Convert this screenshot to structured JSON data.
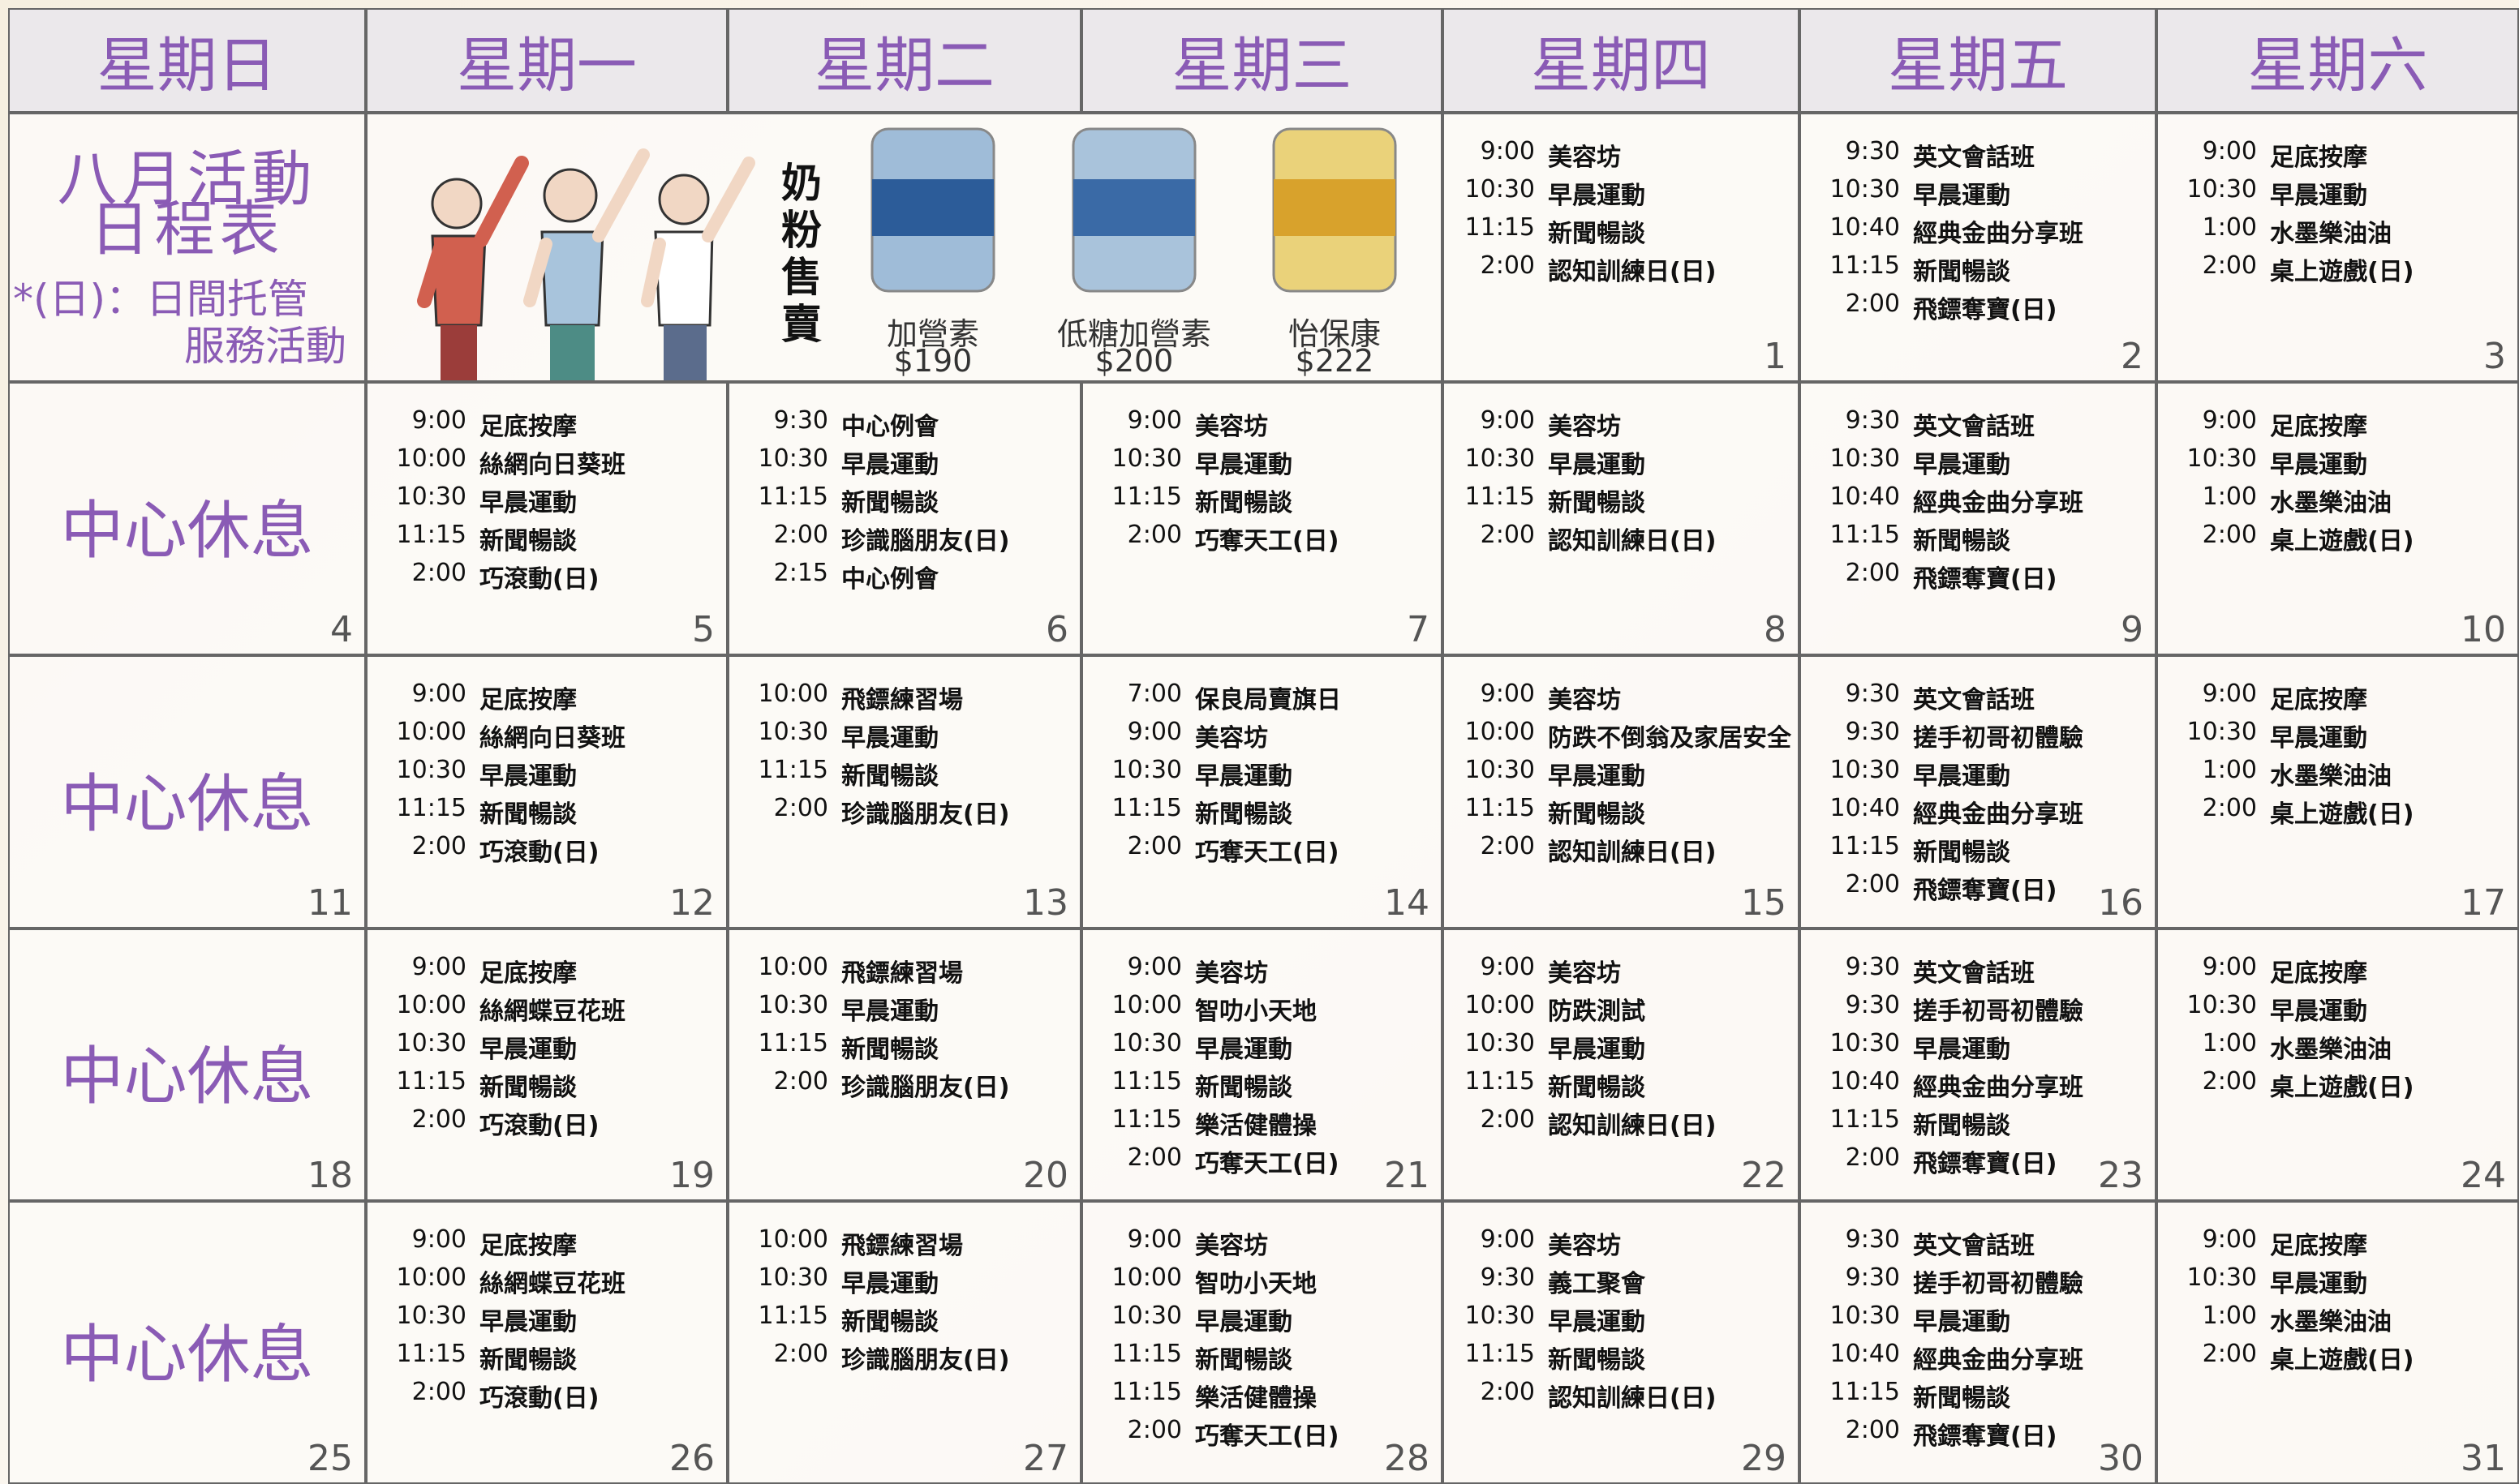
{
  "weekdays": [
    "星期日",
    "星期一",
    "星期二",
    "星期三",
    "星期四",
    "星期五",
    "星期六"
  ],
  "title": {
    "heading": [
      "八月活動",
      "日程表"
    ],
    "note": [
      "*(日)：日間托管",
      "服務活動"
    ]
  },
  "promo": {
    "label": "奶粉售賣",
    "products": [
      {
        "name": "加營素",
        "price": "$190"
      },
      {
        "name": "低糖加營素",
        "price": "$200"
      },
      {
        "name": "怡保康",
        "price": "$222"
      }
    ]
  },
  "weeks": [
    {
      "cells": [
        {
          "day": 1,
          "events": [
            {
              "time": "9:00",
              "activity": "美容坊"
            },
            {
              "time": "10:30",
              "activity": "早晨運動"
            },
            {
              "time": "11:15",
              "activity": "新聞暢談"
            },
            {
              "time": "2:00",
              "activity": "認知訓練日(日)"
            }
          ]
        },
        {
          "day": 2,
          "events": [
            {
              "time": "9:30",
              "activity": "英文會話班"
            },
            {
              "time": "10:30",
              "activity": "早晨運動"
            },
            {
              "time": "10:40",
              "activity": "經典金曲分享班"
            },
            {
              "time": "11:15",
              "activity": "新聞暢談"
            },
            {
              "time": "2:00",
              "activity": "飛鏢奪寶(日)"
            }
          ]
        },
        {
          "day": 3,
          "events": [
            {
              "time": "9:00",
              "activity": "足底按摩"
            },
            {
              "time": "10:30",
              "activity": "早晨運動"
            },
            {
              "time": "1:00",
              "activity": "水墨樂油油"
            },
            {
              "time": "2:00",
              "activity": "桌上遊戲(日)"
            }
          ]
        }
      ]
    },
    {
      "cells": [
        {
          "day": 4,
          "note": "中心休息"
        },
        {
          "day": 5,
          "events": [
            {
              "time": "9:00",
              "activity": "足底按摩"
            },
            {
              "time": "10:00",
              "activity": "絲網向日葵班"
            },
            {
              "time": "10:30",
              "activity": "早晨運動"
            },
            {
              "time": "11:15",
              "activity": "新聞暢談"
            },
            {
              "time": "2:00",
              "activity": "巧滾動(日)"
            }
          ]
        },
        {
          "day": 6,
          "events": [
            {
              "time": "9:30",
              "activity": "中心例會"
            },
            {
              "time": "10:30",
              "activity": "早晨運動"
            },
            {
              "time": "11:15",
              "activity": "新聞暢談"
            },
            {
              "time": "2:00",
              "activity": "珍識腦朋友(日)"
            },
            {
              "time": "2:15",
              "activity": "中心例會"
            }
          ]
        },
        {
          "day": 7,
          "events": [
            {
              "time": "9:00",
              "activity": "美容坊"
            },
            {
              "time": "10:30",
              "activity": "早晨運動"
            },
            {
              "time": "11:15",
              "activity": "新聞暢談"
            },
            {
              "time": "2:00",
              "activity": "巧奪天工(日)"
            }
          ]
        },
        {
          "day": 8,
          "events": [
            {
              "time": "9:00",
              "activity": "美容坊"
            },
            {
              "time": "10:30",
              "activity": "早晨運動"
            },
            {
              "time": "11:15",
              "activity": "新聞暢談"
            },
            {
              "time": "2:00",
              "activity": "認知訓練日(日)"
            }
          ]
        },
        {
          "day": 9,
          "events": [
            {
              "time": "9:30",
              "activity": "英文會話班"
            },
            {
              "time": "10:30",
              "activity": "早晨運動"
            },
            {
              "time": "10:40",
              "activity": "經典金曲分享班"
            },
            {
              "time": "11:15",
              "activity": "新聞暢談"
            },
            {
              "time": "2:00",
              "activity": "飛鏢奪寶(日)"
            }
          ]
        },
        {
          "day": 10,
          "events": [
            {
              "time": "9:00",
              "activity": "足底按摩"
            },
            {
              "time": "10:30",
              "activity": "早晨運動"
            },
            {
              "time": "1:00",
              "activity": "水墨樂油油"
            },
            {
              "time": "2:00",
              "activity": "桌上遊戲(日)"
            }
          ]
        }
      ]
    },
    {
      "cells": [
        {
          "day": 11,
          "note": "中心休息"
        },
        {
          "day": 12,
          "events": [
            {
              "time": "9:00",
              "activity": "足底按摩"
            },
            {
              "time": "10:00",
              "activity": "絲網向日葵班"
            },
            {
              "time": "10:30",
              "activity": "早晨運動"
            },
            {
              "time": "11:15",
              "activity": "新聞暢談"
            },
            {
              "time": "2:00",
              "activity": "巧滾動(日)"
            }
          ]
        },
        {
          "day": 13,
          "events": [
            {
              "time": "10:00",
              "activity": "飛鏢練習場"
            },
            {
              "time": "10:30",
              "activity": "早晨運動"
            },
            {
              "time": "11:15",
              "activity": "新聞暢談"
            },
            {
              "time": "2:00",
              "activity": "珍識腦朋友(日)"
            }
          ]
        },
        {
          "day": 14,
          "events": [
            {
              "time": "7:00",
              "activity": "保良局賣旗日"
            },
            {
              "time": "9:00",
              "activity": "美容坊"
            },
            {
              "time": "10:30",
              "activity": "早晨運動"
            },
            {
              "time": "11:15",
              "activity": "新聞暢談"
            },
            {
              "time": "2:00",
              "activity": "巧奪天工(日)"
            }
          ]
        },
        {
          "day": 15,
          "events": [
            {
              "time": "9:00",
              "activity": "美容坊"
            },
            {
              "time": "10:00",
              "activity": "防跌不倒翁及家居安全"
            },
            {
              "time": "10:30",
              "activity": "早晨運動"
            },
            {
              "time": "11:15",
              "activity": "新聞暢談"
            },
            {
              "time": "2:00",
              "activity": "認知訓練日(日)"
            }
          ]
        },
        {
          "day": 16,
          "events": [
            {
              "time": "9:30",
              "activity": "英文會話班"
            },
            {
              "time": "9:30",
              "activity": "搓手初哥初體驗"
            },
            {
              "time": "10:30",
              "activity": "早晨運動"
            },
            {
              "time": "10:40",
              "activity": "經典金曲分享班"
            },
            {
              "time": "11:15",
              "activity": "新聞暢談"
            },
            {
              "time": "2:00",
              "activity": "飛鏢奪寶(日)"
            }
          ]
        },
        {
          "day": 17,
          "events": [
            {
              "time": "9:00",
              "activity": "足底按摩"
            },
            {
              "time": "10:30",
              "activity": "早晨運動"
            },
            {
              "time": "1:00",
              "activity": "水墨樂油油"
            },
            {
              "time": "2:00",
              "activity": "桌上遊戲(日)"
            }
          ]
        }
      ]
    },
    {
      "cells": [
        {
          "day": 18,
          "note": "中心休息"
        },
        {
          "day": 19,
          "events": [
            {
              "time": "9:00",
              "activity": "足底按摩"
            },
            {
              "time": "10:00",
              "activity": "絲網蝶豆花班"
            },
            {
              "time": "10:30",
              "activity": "早晨運動"
            },
            {
              "time": "11:15",
              "activity": "新聞暢談"
            },
            {
              "time": "2:00",
              "activity": "巧滾動(日)"
            }
          ]
        },
        {
          "day": 20,
          "events": [
            {
              "time": "10:00",
              "activity": "飛鏢練習場"
            },
            {
              "time": "10:30",
              "activity": "早晨運動"
            },
            {
              "time": "11:15",
              "activity": "新聞暢談"
            },
            {
              "time": "2:00",
              "activity": "珍識腦朋友(日)"
            }
          ]
        },
        {
          "day": 21,
          "events": [
            {
              "time": "9:00",
              "activity": "美容坊"
            },
            {
              "time": "10:00",
              "activity": "智叻小天地"
            },
            {
              "time": "10:30",
              "activity": "早晨運動"
            },
            {
              "time": "11:15",
              "activity": "新聞暢談"
            },
            {
              "time": "11:15",
              "activity": "樂活健體操"
            },
            {
              "time": "2:00",
              "activity": "巧奪天工(日)"
            }
          ]
        },
        {
          "day": 22,
          "events": [
            {
              "time": "9:00",
              "activity": "美容坊"
            },
            {
              "time": "10:00",
              "activity": "防跌測試"
            },
            {
              "time": "10:30",
              "activity": "早晨運動"
            },
            {
              "time": "11:15",
              "activity": "新聞暢談"
            },
            {
              "time": "2:00",
              "activity": "認知訓練日(日)"
            }
          ]
        },
        {
          "day": 23,
          "events": [
            {
              "time": "9:30",
              "activity": "英文會話班"
            },
            {
              "time": "9:30",
              "activity": "搓手初哥初體驗"
            },
            {
              "time": "10:30",
              "activity": "早晨運動"
            },
            {
              "time": "10:40",
              "activity": "經典金曲分享班"
            },
            {
              "time": "11:15",
              "activity": "新聞暢談"
            },
            {
              "time": "2:00",
              "activity": "飛鏢奪寶(日)"
            }
          ]
        },
        {
          "day": 24,
          "events": [
            {
              "time": "9:00",
              "activity": "足底按摩"
            },
            {
              "time": "10:30",
              "activity": "早晨運動"
            },
            {
              "time": "1:00",
              "activity": "水墨樂油油"
            },
            {
              "time": "2:00",
              "activity": "桌上遊戲(日)"
            }
          ]
        }
      ]
    },
    {
      "cells": [
        {
          "day": 25,
          "note": "中心休息"
        },
        {
          "day": 26,
          "events": [
            {
              "time": "9:00",
              "activity": "足底按摩"
            },
            {
              "time": "10:00",
              "activity": "絲網蝶豆花班"
            },
            {
              "time": "10:30",
              "activity": "早晨運動"
            },
            {
              "time": "11:15",
              "activity": "新聞暢談"
            },
            {
              "time": "2:00",
              "activity": "巧滾動(日)"
            }
          ]
        },
        {
          "day": 27,
          "events": [
            {
              "time": "10:00",
              "activity": "飛鏢練習場"
            },
            {
              "time": "10:30",
              "activity": "早晨運動"
            },
            {
              "time": "11:15",
              "activity": "新聞暢談"
            },
            {
              "time": "2:00",
              "activity": "珍識腦朋友(日)"
            }
          ]
        },
        {
          "day": 28,
          "events": [
            {
              "time": "9:00",
              "activity": "美容坊"
            },
            {
              "time": "10:00",
              "activity": "智叻小天地"
            },
            {
              "time": "10:30",
              "activity": "早晨運動"
            },
            {
              "time": "11:15",
              "activity": "新聞暢談"
            },
            {
              "time": "11:15",
              "activity": "樂活健體操"
            },
            {
              "time": "2:00",
              "activity": "巧奪天工(日)"
            }
          ]
        },
        {
          "day": 29,
          "events": [
            {
              "time": "9:00",
              "activity": "美容坊"
            },
            {
              "time": "9:30",
              "activity": "義工聚會"
            },
            {
              "time": "10:30",
              "activity": "早晨運動"
            },
            {
              "time": "11:15",
              "activity": "新聞暢談"
            },
            {
              "time": "2:00",
              "activity": "認知訓練日(日)"
            }
          ]
        },
        {
          "day": 30,
          "events": [
            {
              "time": "9:30",
              "activity": "英文會話班"
            },
            {
              "time": "9:30",
              "activity": "搓手初哥初體驗"
            },
            {
              "time": "10:30",
              "activity": "早晨運動"
            },
            {
              "time": "10:40",
              "activity": "經典金曲分享班"
            },
            {
              "time": "11:15",
              "activity": "新聞暢談"
            },
            {
              "time": "2:00",
              "activity": "飛鏢奪寶(日)"
            }
          ]
        },
        {
          "day": 31,
          "events": [
            {
              "time": "9:00",
              "activity": "足底按摩"
            },
            {
              "time": "10:30",
              "activity": "早晨運動"
            },
            {
              "time": "1:00",
              "activity": "水墨樂油油"
            },
            {
              "time": "2:00",
              "activity": "桌上遊戲(日)"
            }
          ]
        }
      ]
    }
  ]
}
